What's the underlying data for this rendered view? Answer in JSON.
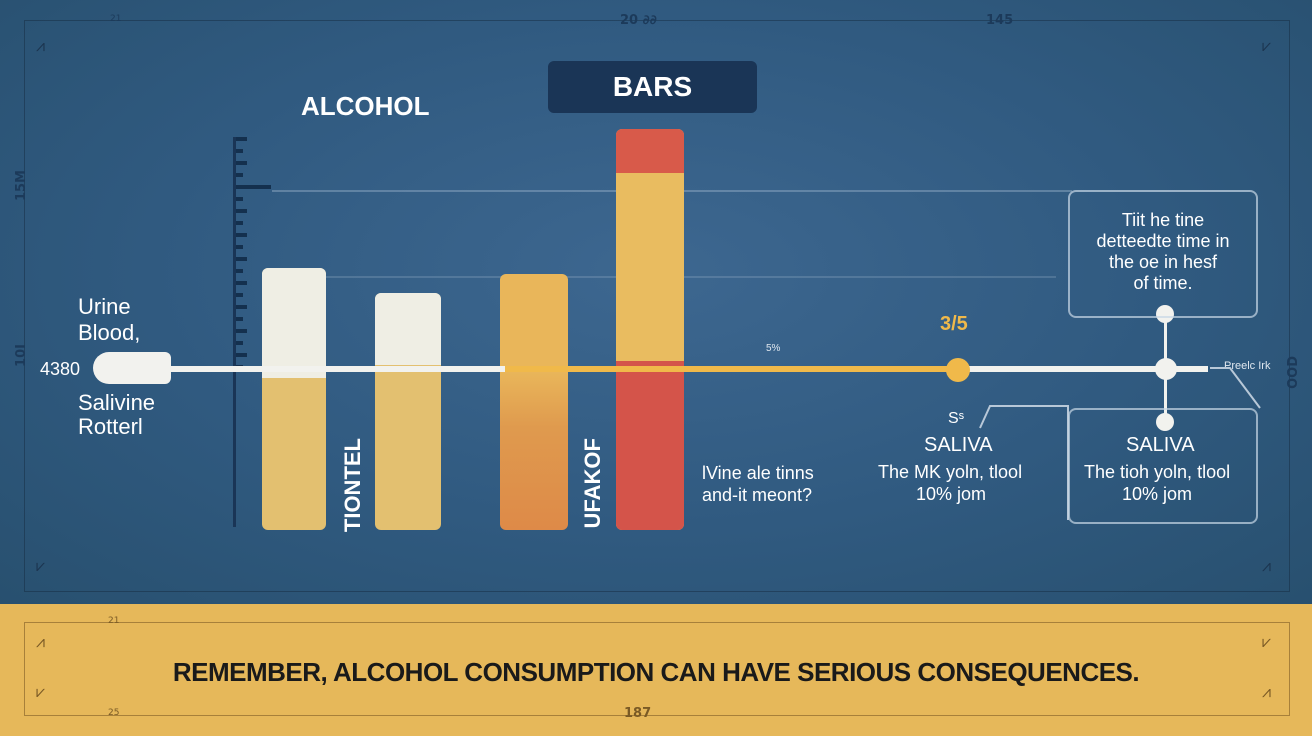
{
  "header": {
    "title_button": "BARS",
    "heading": "ALCOHOL",
    "tick_top_mid": "20 ∂∂",
    "tick_top_right": "145",
    "tick_top_left": "21",
    "tick_left_upper": "15M",
    "tick_left_lower": "10I",
    "tick_right": "OOD"
  },
  "left_labels": {
    "urine": "Urine",
    "blood": "Blood,",
    "value": "4380",
    "salivine": "Salivine",
    "rotterl": "Rotterl"
  },
  "bars": {
    "label_1": "TIONTEL",
    "label_2": "UFAKOF"
  },
  "axis": {
    "small_mark": "5%",
    "marker_value": "3/5",
    "right_tag": "Preelc Irk"
  },
  "middle_text": {
    "line1": "lVine ale tinns",
    "line2": "and-it meont?"
  },
  "saliva_1": {
    "mark": "Sˢ",
    "title": "SALIVA",
    "line1": "The MK yoln, tlool",
    "line2": "10% jom"
  },
  "saliva_2": {
    "title": "SALIVA",
    "line1": "The tioh yoln, tlool",
    "line2": "10% jom"
  },
  "callout": {
    "line1": "Tiit he tine",
    "line2": "detteedte time in",
    "line3": "the oe in hesf",
    "line4": "of time."
  },
  "footer": {
    "message": "REMEMBER, ALCOHOL CONSUMPTION CAN HAVE SERIOUS CONSEQUENCES.",
    "tick_bottom": "187",
    "tick_bottom_left": "21",
    "tick_bottom_left2": "25"
  },
  "colors": {
    "background": "#2f5a80",
    "banner": "#e6b85a",
    "title_button": "#1a3556",
    "bar_cream": "#efeee4",
    "bar_tan": "#e3c070",
    "bar_orange": "#e9b65a",
    "bar_red": "#d4544a",
    "axis_yellow": "#f0b94a",
    "axis_white": "#f2f2ee"
  }
}
